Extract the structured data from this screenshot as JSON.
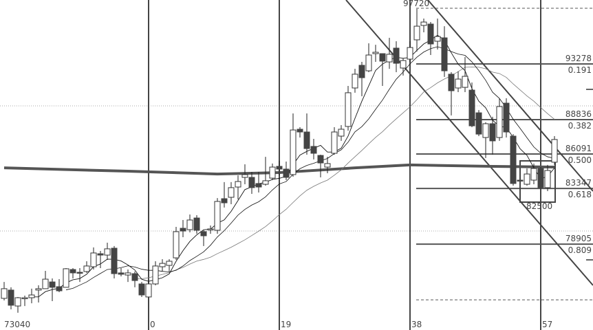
{
  "chart_data": {
    "type": "candlestick",
    "title": "",
    "x_tick_labels": [
      {
        "index": 0,
        "label": "0"
      },
      {
        "index": 19,
        "label": "19"
      },
      {
        "index": 38,
        "label": "38"
      },
      {
        "index": 57,
        "label": "57"
      }
    ],
    "corner_label": "73040",
    "first_index": -21,
    "candles_ohlc": [
      [
        74580,
        75890,
        74410,
        75350
      ],
      [
        75240,
        75460,
        73700,
        74030
      ],
      [
        73970,
        74690,
        73430,
        74630
      ],
      [
        74580,
        74800,
        73970,
        74630
      ],
      [
        74630,
        75350,
        74190,
        74850
      ],
      [
        75240,
        75620,
        74250,
        75350
      ],
      [
        75350,
        76770,
        75350,
        76110
      ],
      [
        75890,
        76170,
        74360,
        75460
      ],
      [
        75510,
        76110,
        75070,
        75180
      ],
      [
        75460,
        76990,
        75460,
        76940
      ],
      [
        76880,
        76990,
        76170,
        76610
      ],
      [
        76660,
        76990,
        75890,
        76610
      ],
      [
        76720,
        77540,
        76610,
        77160
      ],
      [
        77100,
        78640,
        76880,
        78200
      ],
      [
        78140,
        78360,
        76990,
        78030
      ],
      [
        78030,
        79020,
        77650,
        78530
      ],
      [
        78580,
        78750,
        76170,
        76550
      ],
      [
        76610,
        76990,
        76330,
        76500
      ],
      [
        76440,
        76880,
        75890,
        76610
      ],
      [
        76550,
        76720,
        75460,
        76000
      ],
      [
        75730,
        75890,
        74690,
        74850
      ],
      [
        74690,
        75890,
        74690,
        75730
      ],
      [
        75730,
        77540,
        75620,
        77160
      ],
      [
        77100,
        77700,
        76720,
        77370
      ],
      [
        77210,
        77700,
        76720,
        77540
      ],
      [
        77810,
        80280,
        77650,
        79900
      ],
      [
        80170,
        80830,
        79460,
        79950
      ],
      [
        80060,
        81270,
        79840,
        80830
      ],
      [
        80990,
        81210,
        79730,
        80010
      ],
      [
        79900,
        80010,
        78750,
        79570
      ],
      [
        80060,
        80390,
        79730,
        80120
      ],
      [
        80010,
        82580,
        79730,
        82310
      ],
      [
        82530,
        83850,
        81820,
        82200
      ],
      [
        82640,
        83850,
        82090,
        83410
      ],
      [
        83460,
        84390,
        82470,
        83900
      ],
      [
        84230,
        85270,
        83680,
        84450
      ],
      [
        84230,
        84670,
        82910,
        83410
      ],
      [
        83740,
        84670,
        83020,
        83460
      ],
      [
        83680,
        85870,
        83570,
        83960
      ],
      [
        84170,
        85330,
        84010,
        85050
      ],
      [
        85110,
        85550,
        84390,
        84890
      ],
      [
        84890,
        85490,
        84010,
        84230
      ],
      [
        84450,
        89330,
        84280,
        88010
      ],
      [
        88070,
        88230,
        87410,
        87850
      ],
      [
        87850,
        89330,
        86040,
        86530
      ],
      [
        86700,
        87300,
        85660,
        86150
      ],
      [
        85980,
        86040,
        84230,
        85380
      ],
      [
        85050,
        85870,
        84560,
        85330
      ],
      [
        86150,
        88230,
        86040,
        87850
      ],
      [
        87520,
        88400,
        87140,
        88070
      ],
      [
        88290,
        91520,
        87960,
        90980
      ],
      [
        91360,
        92890,
        90980,
        92460
      ],
      [
        93170,
        93440,
        90700,
        92180
      ],
      [
        92730,
        94920,
        92620,
        93990
      ],
      [
        94100,
        94810,
        93440,
        94210
      ],
      [
        94100,
        94100,
        91520,
        93500
      ],
      [
        93440,
        95360,
        92890,
        94050
      ],
      [
        94540,
        95090,
        92620,
        93330
      ],
      [
        92950,
        93720,
        92350,
        93550
      ],
      [
        93660,
        95090,
        93440,
        94590
      ],
      [
        95200,
        97670,
        94270,
        96290
      ],
      [
        96350,
        96900,
        95800,
        96620
      ],
      [
        96460,
        96620,
        93990,
        94870
      ],
      [
        95090,
        96900,
        94430,
        95470
      ],
      [
        95360,
        96290,
        92240,
        92730
      ],
      [
        92460,
        92620,
        89170,
        91140
      ],
      [
        91360,
        92680,
        91030,
        92070
      ],
      [
        91410,
        93830,
        91030,
        92290
      ],
      [
        91190,
        91800,
        88230,
        88340
      ],
      [
        89380,
        89600,
        87520,
        87680
      ],
      [
        87410,
        88620,
        85770,
        88510
      ],
      [
        88510,
        89060,
        86040,
        87140
      ],
      [
        87410,
        90540,
        87140,
        89880
      ],
      [
        90150,
        90540,
        87410,
        87850
      ],
      [
        87520,
        87680,
        83570,
        83740
      ],
      [
        84010,
        84010,
        83960,
        83960
      ],
      [
        83680,
        84940,
        83570,
        84500
      ],
      [
        84010,
        85330,
        83680,
        84940
      ],
      [
        84940,
        85050,
        83300,
        83410
      ],
      [
        83410,
        85220,
        83130,
        84780
      ],
      [
        85440,
        87520,
        85220,
        87250
      ]
    ],
    "thick_ma_points": [
      [
        -21,
        84990
      ],
      [
        -3,
        84720
      ],
      [
        10,
        84500
      ],
      [
        19,
        84610
      ],
      [
        30,
        84990
      ],
      [
        38,
        85220
      ],
      [
        50,
        85110
      ],
      [
        59,
        85050
      ]
    ],
    "high_label": "97720",
    "high_price": 97720,
    "low_price": 74460,
    "fib_levels": [
      {
        "price": 93278,
        "price_label": "93278",
        "ratio_label": "0.191"
      },
      {
        "price": 88836,
        "price_label": "88836",
        "ratio_label": "0.382"
      },
      {
        "price": 86091,
        "price_label": "86091",
        "ratio_label": "0.500"
      },
      {
        "price": 83347,
        "price_label": "83347",
        "ratio_label": "0.618"
      },
      {
        "price": 78905,
        "price_label": "78905",
        "ratio_label": "0.809"
      }
    ],
    "box_label": "82500",
    "grid_prices": [
      89930,
      79950
    ],
    "colors": {
      "bear": "#444444",
      "bull": "#ffffff",
      "outline": "#333333",
      "ma_fast": "#111111",
      "ma_slow": "#777777",
      "thick_ma": "#555555"
    }
  }
}
